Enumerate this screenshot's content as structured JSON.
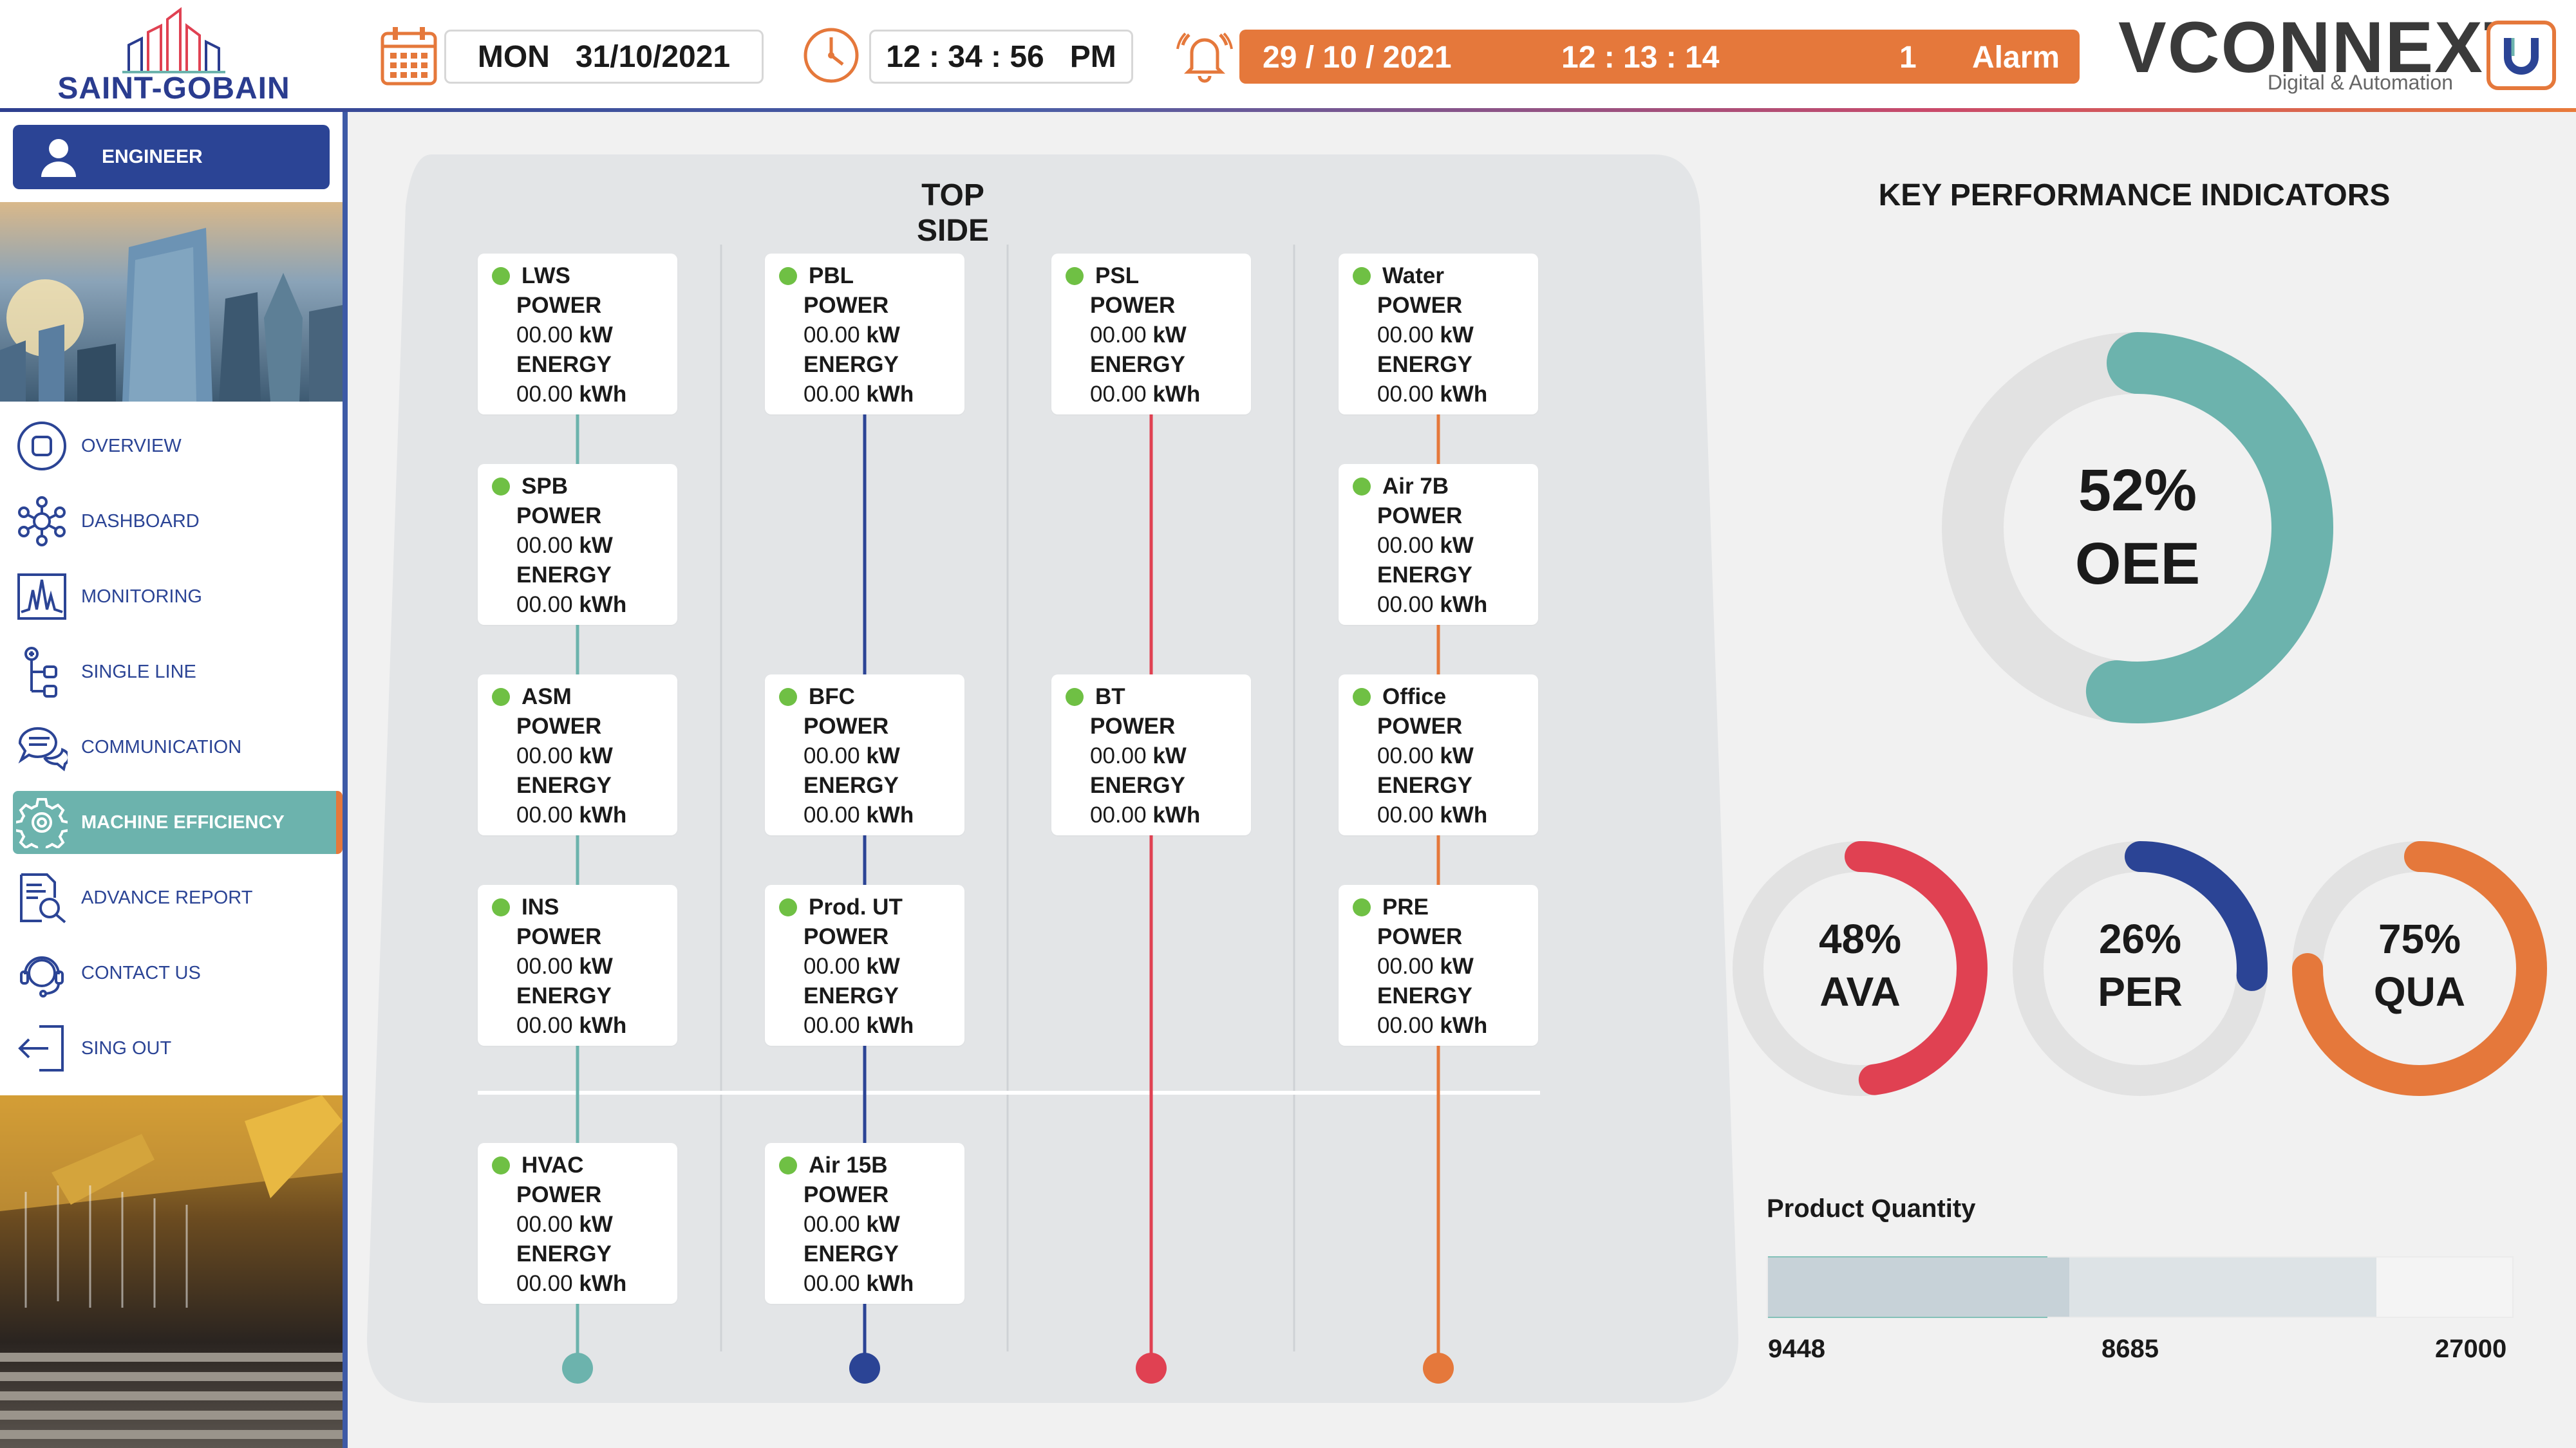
{
  "header": {
    "company": "SAINT-GOBAIN",
    "date": "MON   31/10/2021",
    "time": "12 : 34 : 56   PM",
    "alarm": {
      "date": "29 / 10 / 2021",
      "time": "12 : 13 : 14",
      "count": "1",
      "label": "Alarm"
    },
    "brand": "VCONNEXT",
    "brand_sub": "Digital & Automation"
  },
  "colors": {
    "teal": "#6cb3ad",
    "navy": "#2b4495",
    "red": "#e04152",
    "orange": "#e5783b",
    "green": "#6fc044"
  },
  "user": {
    "role": "ENGINEER"
  },
  "nav": [
    {
      "label": "OVERVIEW",
      "icon": "overview-icon"
    },
    {
      "label": "DASHBOARD",
      "icon": "dashboard-icon"
    },
    {
      "label": "MONITORING",
      "icon": "monitoring-icon"
    },
    {
      "label": "SINGLE LINE",
      "icon": "single-line-icon"
    },
    {
      "label": "COMMUNICATION",
      "icon": "communication-icon"
    },
    {
      "label": "MACHINE EFFICIENCY",
      "icon": "gear-icon"
    },
    {
      "label": "ADVANCE REPORT",
      "icon": "report-icon"
    },
    {
      "label": "CONTACT US",
      "icon": "headset-icon"
    },
    {
      "label": "SING OUT",
      "icon": "sign-out-icon"
    }
  ],
  "top_side": {
    "title": "TOP SIDE",
    "power_label": "POWER",
    "energy_label": "ENERGY",
    "columns": [
      {
        "color": "teal",
        "cards": [
          {
            "name": "LWS",
            "power": "00.00",
            "power_unit": "kW",
            "energy": "00.00",
            "energy_unit": "kWh"
          },
          {
            "name": "SPB",
            "power": "00.00",
            "power_unit": "kW",
            "energy": "00.00",
            "energy_unit": "kWh"
          },
          {
            "name": "ASM",
            "power": "00.00",
            "power_unit": "kW",
            "energy": "00.00",
            "energy_unit": "kWh"
          },
          {
            "name": "INS",
            "power": "00.00",
            "power_unit": "kW",
            "energy": "00.00",
            "energy_unit": "kWh"
          },
          {
            "name": "HVAC",
            "power": "00.00",
            "power_unit": "kW",
            "energy": "00.00",
            "energy_unit": "kWh"
          }
        ]
      },
      {
        "color": "navy",
        "cards": [
          {
            "name": "PBL",
            "power": "00.00",
            "power_unit": "kW",
            "energy": "00.00",
            "energy_unit": "kWh"
          },
          {
            "name": "BFC",
            "power": "00.00",
            "power_unit": "kW",
            "energy": "00.00",
            "energy_unit": "kWh"
          },
          {
            "name": "Prod. UT",
            "power": "00.00",
            "power_unit": "kW",
            "energy": "00.00",
            "energy_unit": "kWh"
          },
          {
            "name": "Air 15B",
            "power": "00.00",
            "power_unit": "kW",
            "energy": "00.00",
            "energy_unit": "kWh"
          }
        ]
      },
      {
        "color": "red",
        "cards": [
          {
            "name": "PSL",
            "power": "00.00",
            "power_unit": "kW",
            "energy": "00.00",
            "energy_unit": "kWh"
          },
          {
            "name": "BT",
            "power": "00.00",
            "power_unit": "kW",
            "energy": "00.00",
            "energy_unit": "kWh"
          }
        ]
      },
      {
        "color": "orange",
        "cards": [
          {
            "name": "Water",
            "power": "00.00",
            "power_unit": "kW",
            "energy": "00.00",
            "energy_unit": "kWh"
          },
          {
            "name": "Air 7B",
            "power": "00.00",
            "power_unit": "kW",
            "energy": "00.00",
            "energy_unit": "kWh"
          },
          {
            "name": "Office",
            "power": "00.00",
            "power_unit": "kW",
            "energy": "00.00",
            "energy_unit": "kWh"
          },
          {
            "name": "PRE",
            "power": "00.00",
            "power_unit": "kW",
            "energy": "00.00",
            "energy_unit": "kWh"
          }
        ]
      }
    ]
  },
  "kpi": {
    "title": "KEY PERFORMANCE INDICATORS",
    "oee": {
      "value": 52,
      "text": "52%",
      "label": "OEE"
    },
    "ava": {
      "value": 48,
      "text": "48%",
      "label": "AVA"
    },
    "per": {
      "value": 26,
      "text": "26%",
      "label": "PER"
    },
    "qua": {
      "value": 75,
      "text": "75%",
      "label": "QUA"
    }
  },
  "product_quantity": {
    "title": "Product Quantity",
    "min_label": "9448",
    "mid_label": "8685",
    "max_label": "27000",
    "produced": 9448,
    "target": 8685,
    "max": 27000
  }
}
